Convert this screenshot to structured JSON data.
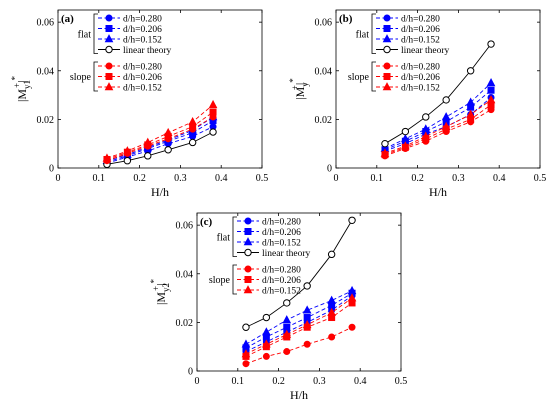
{
  "legend": {
    "flat_label": "flat",
    "slope_label": "slope",
    "entries": [
      {
        "label": "d/h=0.280",
        "color": "#0000ff",
        "marker": "circle"
      },
      {
        "label": "d/h=0.206",
        "color": "#0000ff",
        "marker": "square"
      },
      {
        "label": "d/h=0.152",
        "color": "#0000ff",
        "marker": "triangle"
      },
      {
        "label": "linear theory",
        "color": "#000000",
        "marker": "open-circle"
      },
      {
        "label": "d/h=0.280",
        "color": "#ff0000",
        "marker": "circle"
      },
      {
        "label": "d/h=0.206",
        "color": "#ff0000",
        "marker": "square"
      },
      {
        "label": "d/h=0.152",
        "color": "#ff0000",
        "marker": "triangle"
      }
    ]
  },
  "chart_data": [
    {
      "type": "line",
      "panel": "(a)",
      "xlabel": "H/h",
      "ylabel": "|M_y1^+|^*",
      "xlim": [
        0,
        0.5
      ],
      "ylim": [
        0,
        0.065
      ],
      "xticks": [
        "0",
        "0.1",
        "0.2",
        "0.3",
        "0.4",
        "0.5"
      ],
      "yticks": [
        "0",
        "0.02",
        "0.04",
        "0.06"
      ],
      "x": [
        0.12,
        0.17,
        0.22,
        0.27,
        0.33,
        0.38
      ],
      "series": [
        {
          "name": "d/h=0.280",
          "group": "flat",
          "color": "#0000ff",
          "marker": "circle",
          "values": [
            0.002,
            0.0045,
            0.007,
            0.01,
            0.013,
            0.017
          ]
        },
        {
          "name": "d/h=0.206",
          "group": "flat",
          "color": "#0000ff",
          "marker": "square",
          "values": [
            0.0025,
            0.005,
            0.008,
            0.011,
            0.0145,
            0.0195
          ]
        },
        {
          "name": "d/h=0.152",
          "group": "flat",
          "color": "#0000ff",
          "marker": "triangle",
          "values": [
            0.003,
            0.0055,
            0.0085,
            0.0115,
            0.0155,
            0.021
          ]
        },
        {
          "name": "linear theory",
          "group": "flat",
          "color": "#000000",
          "marker": "open-circle",
          "values": [
            0.0015,
            0.003,
            0.005,
            0.0075,
            0.0105,
            0.0148
          ]
        },
        {
          "name": "d/h=0.280",
          "group": "slope",
          "color": "#ff0000",
          "marker": "circle",
          "values": [
            0.003,
            0.006,
            0.009,
            0.012,
            0.016,
            0.021
          ]
        },
        {
          "name": "d/h=0.206",
          "group": "slope",
          "color": "#ff0000",
          "marker": "square",
          "values": [
            0.0035,
            0.0065,
            0.0095,
            0.013,
            0.017,
            0.023
          ]
        },
        {
          "name": "d/h=0.152",
          "group": "slope",
          "color": "#ff0000",
          "marker": "triangle",
          "values": [
            0.004,
            0.007,
            0.0105,
            0.0145,
            0.019,
            0.026
          ]
        }
      ]
    },
    {
      "type": "line",
      "panel": "(b)",
      "xlabel": "H/h",
      "ylabel": "|M_y^+|^*",
      "xlim": [
        0,
        0.5
      ],
      "ylim": [
        0,
        0.065
      ],
      "xticks": [
        "0",
        "0.1",
        "0.2",
        "0.3",
        "0.4",
        "0.5"
      ],
      "yticks": [
        "0",
        "0.02",
        "0.04",
        "0.06"
      ],
      "x": [
        0.12,
        0.17,
        0.22,
        0.27,
        0.33,
        0.38
      ],
      "series": [
        {
          "name": "d/h=0.280",
          "group": "flat",
          "color": "#0000ff",
          "marker": "circle",
          "values": [
            0.007,
            0.01,
            0.014,
            0.017,
            0.022,
            0.029
          ]
        },
        {
          "name": "d/h=0.206",
          "group": "flat",
          "color": "#0000ff",
          "marker": "square",
          "values": [
            0.0075,
            0.011,
            0.015,
            0.019,
            0.025,
            0.032
          ]
        },
        {
          "name": "d/h=0.152",
          "group": "flat",
          "color": "#0000ff",
          "marker": "triangle",
          "values": [
            0.008,
            0.012,
            0.016,
            0.021,
            0.027,
            0.035
          ]
        },
        {
          "name": "linear theory",
          "group": "flat",
          "color": "#000000",
          "marker": "open-circle",
          "values": [
            0.01,
            0.015,
            0.021,
            0.028,
            0.04,
            0.051
          ]
        },
        {
          "name": "d/h=0.280",
          "group": "slope",
          "color": "#ff0000",
          "marker": "circle",
          "values": [
            0.005,
            0.008,
            0.011,
            0.015,
            0.019,
            0.024
          ]
        },
        {
          "name": "d/h=0.206",
          "group": "slope",
          "color": "#ff0000",
          "marker": "square",
          "values": [
            0.0055,
            0.0085,
            0.012,
            0.016,
            0.02,
            0.026
          ]
        },
        {
          "name": "d/h=0.152",
          "group": "slope",
          "color": "#ff0000",
          "marker": "triangle",
          "values": [
            0.006,
            0.009,
            0.013,
            0.017,
            0.022,
            0.028
          ]
        }
      ]
    },
    {
      "type": "line",
      "panel": "(c)",
      "xlabel": "H/h",
      "ylabel": "|M_y2^+|^*",
      "xlim": [
        0,
        0.5
      ],
      "ylim": [
        0,
        0.065
      ],
      "xticks": [
        "0",
        "0.1",
        "0.2",
        "0.3",
        "0.4",
        "0.5"
      ],
      "yticks": [
        "0",
        "0.02",
        "0.04",
        "0.06"
      ],
      "x": [
        0.12,
        0.17,
        0.22,
        0.27,
        0.33,
        0.38
      ],
      "series": [
        {
          "name": "d/h=0.280",
          "group": "flat",
          "color": "#0000ff",
          "marker": "circle",
          "values": [
            0.008,
            0.012,
            0.016,
            0.02,
            0.025,
            0.031
          ]
        },
        {
          "name": "d/h=0.206",
          "group": "flat",
          "color": "#0000ff",
          "marker": "square",
          "values": [
            0.0095,
            0.014,
            0.018,
            0.022,
            0.027,
            0.032
          ]
        },
        {
          "name": "d/h=0.152",
          "group": "flat",
          "color": "#0000ff",
          "marker": "triangle",
          "values": [
            0.011,
            0.016,
            0.021,
            0.025,
            0.029,
            0.033
          ]
        },
        {
          "name": "linear theory",
          "group": "flat",
          "color": "#000000",
          "marker": "open-circle",
          "values": [
            0.018,
            0.022,
            0.028,
            0.035,
            0.048,
            0.062
          ]
        },
        {
          "name": "d/h=0.280",
          "group": "slope",
          "color": "#ff0000",
          "marker": "circle",
          "values": [
            0.003,
            0.006,
            0.008,
            0.011,
            0.014,
            0.018
          ]
        },
        {
          "name": "d/h=0.206",
          "group": "slope",
          "color": "#ff0000",
          "marker": "square",
          "values": [
            0.006,
            0.01,
            0.014,
            0.018,
            0.022,
            0.028
          ]
        },
        {
          "name": "d/h=0.152",
          "group": "slope",
          "color": "#ff0000",
          "marker": "triangle",
          "values": [
            0.007,
            0.011,
            0.015,
            0.019,
            0.024,
            0.03
          ]
        }
      ]
    }
  ]
}
